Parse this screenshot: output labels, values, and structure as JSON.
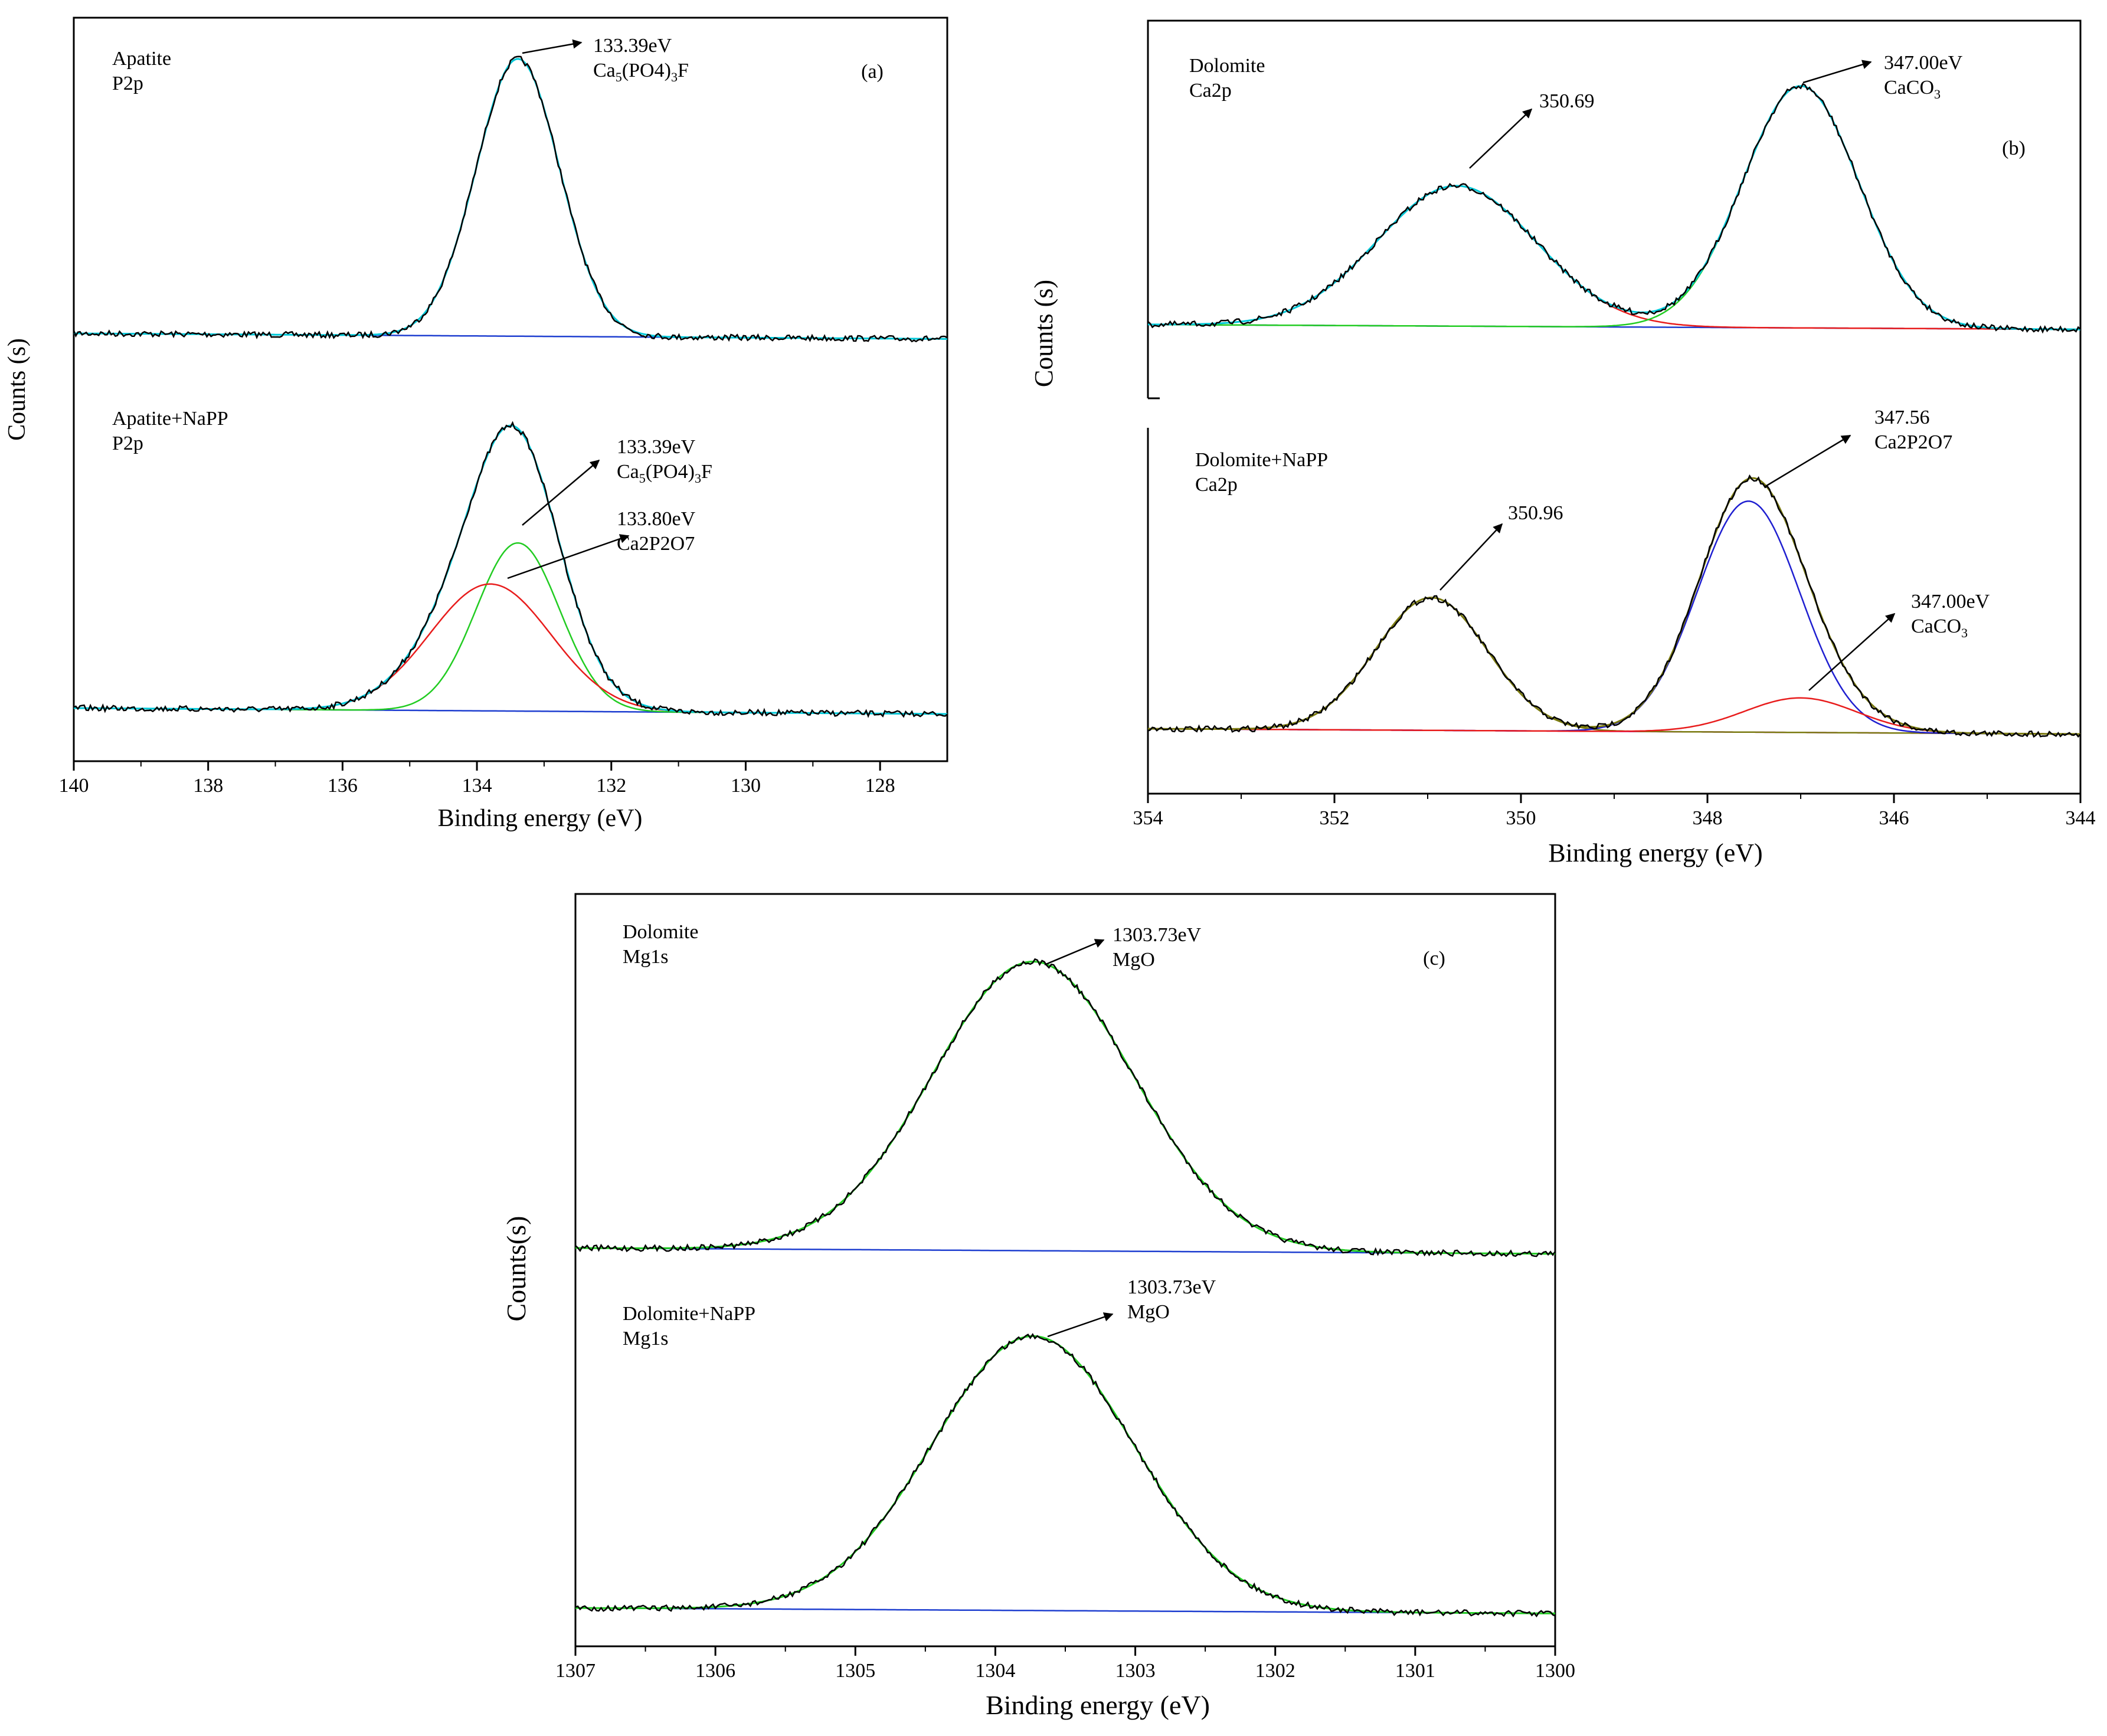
{
  "chart_data": [
    {
      "type": "line",
      "panel": "(a)",
      "xlabel": "Binding energy (eV)",
      "ylabel": "Counts (s)",
      "xlim": [
        140,
        127
      ],
      "xticks": [
        "140",
        "138",
        "136",
        "134",
        "132",
        "130",
        "128"
      ],
      "subplots": [
        {
          "sample": "Apatite",
          "orbital": "P2p",
          "peaks": [
            {
              "energy": 133.39,
              "label_energy": "133.39eV",
              "label_comp": "Ca5(PO4)3F",
              "color": "#00c8d8",
              "height": 1.0,
              "sigma": 0.62
            }
          ],
          "envelope_color": "#00c8d8",
          "background_color": "#1f3fd0",
          "annotations": [
            {
              "line1": "133.39eV",
              "line2_main": "Ca",
              "line2_sub": "5",
              "line2_mid": "(PO4)",
              "line2_sub2": "3",
              "line2_end": "F"
            }
          ]
        },
        {
          "sample": "Apatite+NaPP",
          "orbital": "P2p",
          "peaks": [
            {
              "energy": 133.39,
              "label_energy": "133.39eV",
              "label_comp": "Ca5(PO4)3F",
              "color": "#22cc22",
              "height": 0.57,
              "sigma": 0.62
            },
            {
              "energy": 133.8,
              "label_energy": "133.80eV",
              "label_comp": "Ca2P2O7",
              "color": "#e81c1c",
              "height": 0.43,
              "sigma": 0.9
            }
          ],
          "envelope_color": "#00c8d8",
          "background_color": "#1f3fd0",
          "annotations": [
            {
              "line1": "133.39eV",
              "line2_main": "Ca",
              "line2_sub": "5",
              "line2_mid": "(PO4)",
              "line2_sub2": "3",
              "line2_end": "F"
            },
            {
              "line1": "133.80eV",
              "line2_main": "Ca2P2O7"
            }
          ]
        }
      ],
      "panel_label": "(a)"
    },
    {
      "type": "line",
      "panel": "(b)",
      "xlabel": "Binding energy (eV)",
      "ylabel": "Counts (s)",
      "xlim": [
        354,
        344
      ],
      "xticks": [
        "354",
        "352",
        "350",
        "348",
        "346",
        "344"
      ],
      "subplots": [
        {
          "sample": "Dolomite",
          "orbital": "Ca2p",
          "peaks": [
            {
              "energy": 350.69,
              "color": "#e81c1c",
              "height": 0.58,
              "sigma": 0.85
            },
            {
              "energy": 347.0,
              "color": "#22cc22",
              "height": 1.0,
              "sigma": 0.62
            }
          ],
          "envelope_color": "#00c8d8",
          "background_color": "#1f3fd0",
          "annotations": [
            {
              "line1": "350.69"
            },
            {
              "line1": "347.00eV",
              "line2_main": "CaCO",
              "line2_sub": "3"
            }
          ]
        },
        {
          "sample": "Dolomite+NaPP",
          "orbital": "Ca2p",
          "peaks": [
            {
              "energy": 350.96,
              "color": "#7a7a10",
              "height": 0.5,
              "sigma": 0.6
            },
            {
              "energy": 347.56,
              "color": "#1f1fd0",
              "height": 0.87,
              "sigma": 0.55
            },
            {
              "energy": 347.0,
              "color": "#e81c1c",
              "height": 0.13,
              "sigma": 0.6
            }
          ],
          "envelope_color": "#7a7a10",
          "background_color": "#e020e0",
          "annotations": [
            {
              "line1": "350.96"
            },
            {
              "line1": "347.56",
              "line2_main": "Ca2P2O7"
            },
            {
              "line1": "347.00eV",
              "line2_main": "CaCO",
              "line2_sub": "3"
            }
          ]
        }
      ],
      "panel_label": "(b)"
    },
    {
      "type": "line",
      "panel": "(c)",
      "xlabel": "Binding energy (eV)",
      "ylabel": "Counts(s)",
      "xlim": [
        1307,
        1300
      ],
      "xticks": [
        "1307",
        "1306",
        "1305",
        "1304",
        "1303",
        "1302",
        "1301",
        "1300"
      ],
      "subplots": [
        {
          "sample": "Dolomite",
          "orbital": "Mg1s",
          "peaks": [
            {
              "energy": 1303.73,
              "color": "#22cc22",
              "height": 1.0,
              "sigma": 0.72
            }
          ],
          "envelope_color": "#22cc22",
          "background_color": "#1f3fd0",
          "annotations": [
            {
              "line1": "1303.73eV",
              "line2_main": "MgO"
            }
          ]
        },
        {
          "sample": "Dolomite+NaPP",
          "orbital": "Mg1s",
          "peaks": [
            {
              "energy": 1303.73,
              "color": "#22cc22",
              "height": 1.0,
              "sigma": 0.72
            }
          ],
          "envelope_color": "#22cc22",
          "background_color": "#1f3fd0",
          "annotations": [
            {
              "line1": "1303.73eV",
              "line2_main": "MgO"
            }
          ]
        }
      ],
      "panel_label": "(c)"
    }
  ]
}
